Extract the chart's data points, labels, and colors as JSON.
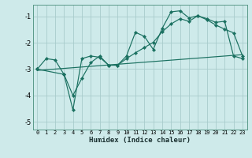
{
  "xlabel": "Humidex (Indice chaleur)",
  "bg_color": "#ceeaea",
  "line_color": "#1a7060",
  "grid_color": "#a8cccc",
  "xlim": [
    -0.5,
    23.5
  ],
  "ylim": [
    -5.3,
    -0.55
  ],
  "xticks": [
    0,
    1,
    2,
    3,
    4,
    5,
    6,
    7,
    8,
    9,
    10,
    11,
    12,
    13,
    14,
    15,
    16,
    17,
    18,
    19,
    20,
    21,
    22,
    23
  ],
  "yticks": [
    -5,
    -4,
    -3,
    -2,
    -1
  ],
  "line1_x": [
    0,
    1,
    2,
    3,
    4,
    5,
    6,
    7,
    8,
    9,
    10,
    11,
    12,
    13,
    14,
    15,
    16,
    17,
    18,
    19,
    20,
    21,
    22,
    23
  ],
  "line1_y": [
    -3.0,
    -2.6,
    -2.65,
    -3.2,
    -4.55,
    -2.6,
    -2.5,
    -2.55,
    -2.85,
    -2.85,
    -2.5,
    -1.6,
    -1.75,
    -2.25,
    -1.45,
    -0.82,
    -0.78,
    -1.05,
    -0.97,
    -1.08,
    -1.22,
    -1.18,
    -2.5,
    -2.6
  ],
  "line2_x": [
    0,
    3,
    4,
    5,
    6,
    7,
    8,
    9,
    10,
    11,
    12,
    13,
    14,
    15,
    16,
    17,
    18,
    19,
    20,
    21,
    22,
    23
  ],
  "line2_y": [
    -3.0,
    -3.2,
    -4.0,
    -3.35,
    -2.75,
    -2.5,
    -2.85,
    -2.85,
    -2.6,
    -2.38,
    -2.18,
    -1.98,
    -1.58,
    -1.28,
    -1.08,
    -1.18,
    -0.97,
    -1.12,
    -1.32,
    -1.48,
    -1.62,
    -2.5
  ],
  "line3_x": [
    0,
    23
  ],
  "line3_y": [
    -3.05,
    -2.45
  ]
}
